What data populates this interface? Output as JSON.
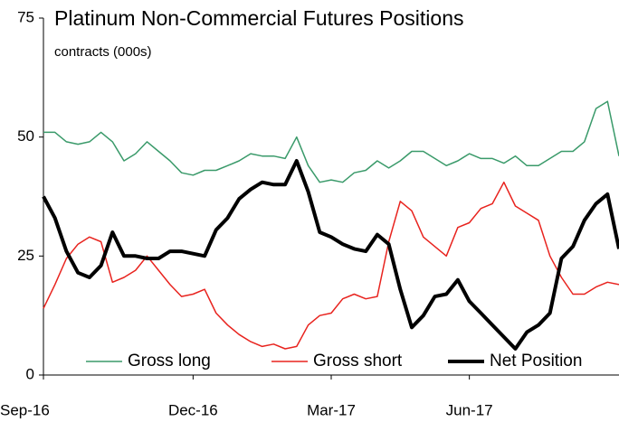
{
  "chart_data": {
    "type": "line",
    "title": "Platinum Non-Commercial Futures Positions",
    "subtitle": "contracts (000s)",
    "categories": [
      "Sep-16",
      null,
      null,
      null,
      null,
      null,
      null,
      null,
      null,
      null,
      null,
      null,
      null,
      "Dec-16",
      null,
      null,
      null,
      null,
      null,
      null,
      null,
      null,
      null,
      null,
      null,
      "Mar-17",
      null,
      null,
      null,
      null,
      null,
      null,
      null,
      null,
      null,
      null,
      null,
      "Jun-17",
      null,
      null,
      null,
      null,
      null,
      null,
      null,
      null,
      null,
      null,
      null,
      null,
      null
    ],
    "series": [
      {
        "name": "Gross long",
        "color": "#3a9a6a",
        "width": 1.5,
        "values": [
          51,
          51,
          49,
          48.5,
          49,
          51,
          49,
          45,
          46.5,
          49,
          47,
          45,
          42.5,
          42,
          43,
          43,
          44,
          45,
          46.5,
          46,
          46,
          45.5,
          50,
          44,
          40.5,
          41,
          40.5,
          42.5,
          43,
          45,
          43.5,
          45,
          47,
          47,
          45.5,
          44,
          45,
          46.5,
          45.5,
          45.5,
          44.5,
          46,
          44,
          44,
          45.5,
          47,
          47,
          49,
          56,
          57.5,
          46
        ]
      },
      {
        "name": "Gross short",
        "color": "#e8231e",
        "width": 1.5,
        "values": [
          14,
          19,
          24.5,
          27.5,
          29,
          28,
          19.5,
          20.5,
          22,
          25,
          22,
          19,
          16.5,
          17,
          18,
          13,
          10.5,
          8.5,
          7,
          6,
          6.5,
          5.5,
          6,
          10.5,
          12.5,
          13,
          16,
          17,
          16,
          16.5,
          28,
          36.5,
          34.5,
          29,
          27,
          25,
          31,
          32,
          35,
          36,
          40.5,
          35.5,
          34,
          32.5,
          25,
          20.5,
          17,
          17,
          18.5,
          19.5,
          19
        ]
      },
      {
        "name": "Net Position",
        "color": "#000000",
        "width": 4,
        "values": [
          37.5,
          33,
          26,
          21.5,
          20.5,
          23,
          30,
          25,
          25,
          24.5,
          24.5,
          26,
          26,
          25.5,
          25,
          30.5,
          33,
          37,
          39,
          40.5,
          40,
          40,
          45,
          38.5,
          30,
          29,
          27.5,
          26.5,
          26,
          29.5,
          27.5,
          18,
          10,
          12.5,
          16.5,
          17,
          20,
          15.5,
          13,
          10.5,
          8,
          5.5,
          9,
          10.5,
          13,
          24.5,
          27,
          32.5,
          36,
          38,
          26.5
        ]
      }
    ],
    "ylim": [
      0,
      75
    ],
    "yticks": [
      0,
      25,
      50,
      75
    ],
    "grid": false,
    "legend": "bottom"
  }
}
